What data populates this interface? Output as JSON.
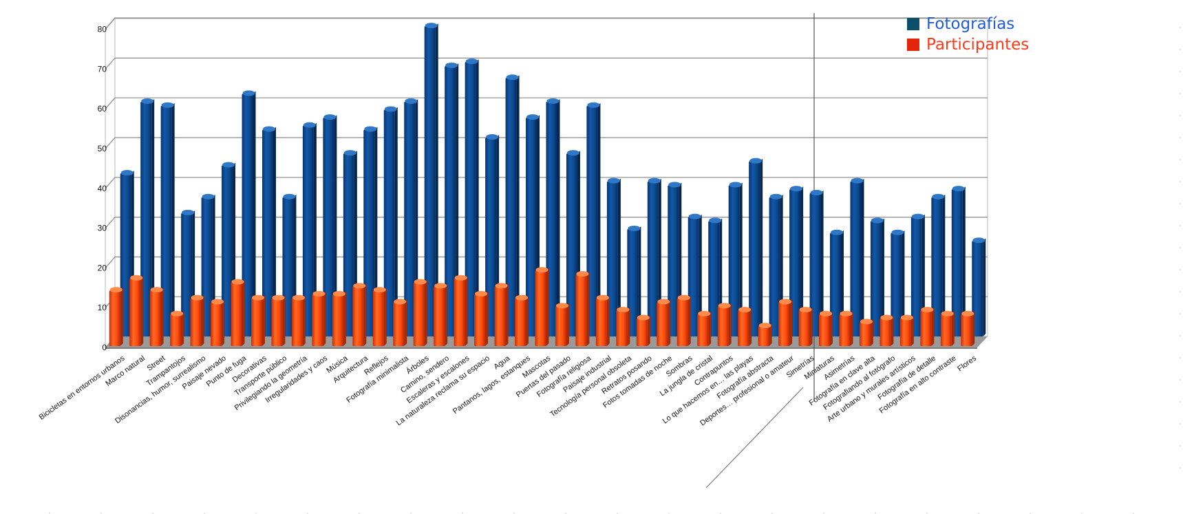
{
  "chart_data": {
    "type": "bar",
    "title": "",
    "xlabel": "",
    "ylabel": "",
    "ylim": [
      0,
      80
    ],
    "yticks": [
      0,
      10,
      20,
      30,
      40,
      50,
      60,
      70,
      80
    ],
    "grid": true,
    "legend_position": "top-right",
    "categories": [
      "Bicicletas en entornos urbanos",
      "Marco natural",
      "Street",
      "Trampantojos",
      "Disonancias, humor, surrealismo",
      "Paisaje nevado",
      "Punto de fuga",
      "Decorativas",
      "Transporte público",
      "Privilegiando la geometría",
      "Irregularidades y caos",
      "Música",
      "Arquitectura",
      "Reflejos",
      "Fotografía minimalista",
      "Árboles",
      "Camino, sendero",
      "Escaleras y escalones",
      "La naturaleza reclama su espacio",
      "Agua",
      "Pantanos, lagos, estanques",
      "Mascotas",
      "Puertas del pasado",
      "Fotografía religiosa",
      "Paisaje industrial",
      "Tecnología personal obsoleta",
      "Retratos posando",
      "Fotos tomadas de noche",
      "Sombras",
      "La jungla de cristal",
      "Contrapuntos",
      "Lo que hacemos en… las playas",
      "Fotografía abstracta",
      "Deportes… profesional o amateur",
      "Simetrías",
      "Miniaturas",
      "Asimetrías",
      "Fotografía en clave alta",
      "Fotografiando al fotógrafo",
      "Arte urbano y murales artísticos",
      "Fotografía de detalle",
      "Fotografía en alto contraste",
      "Flores"
    ],
    "series": [
      {
        "name": "Fotografías",
        "color": "#0b4a8e",
        "values": [
          41,
          59,
          58,
          31,
          35,
          43,
          61,
          52,
          35,
          53,
          55,
          46,
          52,
          57,
          59,
          78,
          68,
          69,
          50,
          65,
          55,
          59,
          46,
          58,
          39,
          27,
          39,
          38,
          30,
          29,
          38,
          44,
          35,
          37,
          36,
          26,
          39,
          29,
          26,
          30,
          35,
          37,
          24
        ]
      },
      {
        "name": "Participantes",
        "color": "#ff4a0e",
        "values": [
          14,
          17,
          14,
          8,
          12,
          11,
          16,
          12,
          12,
          12,
          13,
          13,
          15,
          14,
          11,
          16,
          15,
          17,
          13,
          15,
          12,
          19,
          10,
          18,
          12,
          9,
          7,
          11,
          12,
          8,
          10,
          9,
          5,
          11,
          9,
          8,
          8,
          6,
          7,
          7,
          9,
          8,
          8
        ]
      }
    ]
  },
  "legend": {
    "items": [
      {
        "label": "Fotografías",
        "swatch_color": "#0d4f6a",
        "text_color": "#1f5bd6"
      },
      {
        "label": "Participantes",
        "swatch_color": "#e2260b",
        "text_color": "#ff3a1a"
      }
    ]
  }
}
